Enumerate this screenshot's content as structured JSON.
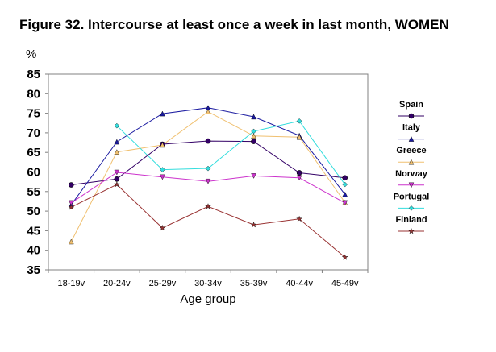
{
  "chart_data": {
    "type": "line",
    "title": "Figure 32. Intercourse at least once a week in last month, WOMEN",
    "ylabel": "%",
    "xlabel": "Age group",
    "categories": [
      "18-19v",
      "20-24v",
      "25-29v",
      "30-34v",
      "35-39v",
      "40-44v",
      "45-49v"
    ],
    "ylim": [
      35,
      85
    ],
    "yticks": [
      35,
      40,
      45,
      50,
      55,
      60,
      65,
      70,
      75,
      80,
      85
    ],
    "grid": false,
    "legend": "right",
    "series": [
      {
        "name": "Spain",
        "color": "#330066",
        "marker": "circle",
        "values": [
          56.7,
          58.2,
          67.1,
          67.9,
          67.8,
          59.8,
          58.5
        ]
      },
      {
        "name": "Italy",
        "color": "#1a1aa0",
        "marker": "triangle",
        "values": [
          51.6,
          67.7,
          74.9,
          76.4,
          74.1,
          69.3,
          54.3
        ]
      },
      {
        "name": "Greece",
        "color": "#f0c070",
        "marker": "triangle",
        "values": [
          42.2,
          65.1,
          66.9,
          75.4,
          69.2,
          68.9,
          52.2
        ]
      },
      {
        "name": "Norway",
        "color": "#cc33cc",
        "marker": "triangle-down",
        "values": [
          52.1,
          59.9,
          58.7,
          57.6,
          59.0,
          58.5,
          52.1
        ]
      },
      {
        "name": "Portugal",
        "color": "#33dddd",
        "marker": "diamond",
        "values": [
          null,
          71.8,
          60.6,
          60.9,
          70.4,
          73.0,
          56.8
        ]
      },
      {
        "name": "Finland",
        "color": "#993333",
        "marker": "star",
        "values": [
          51.0,
          56.8,
          45.7,
          51.2,
          46.5,
          48.0,
          38.2
        ]
      }
    ]
  }
}
